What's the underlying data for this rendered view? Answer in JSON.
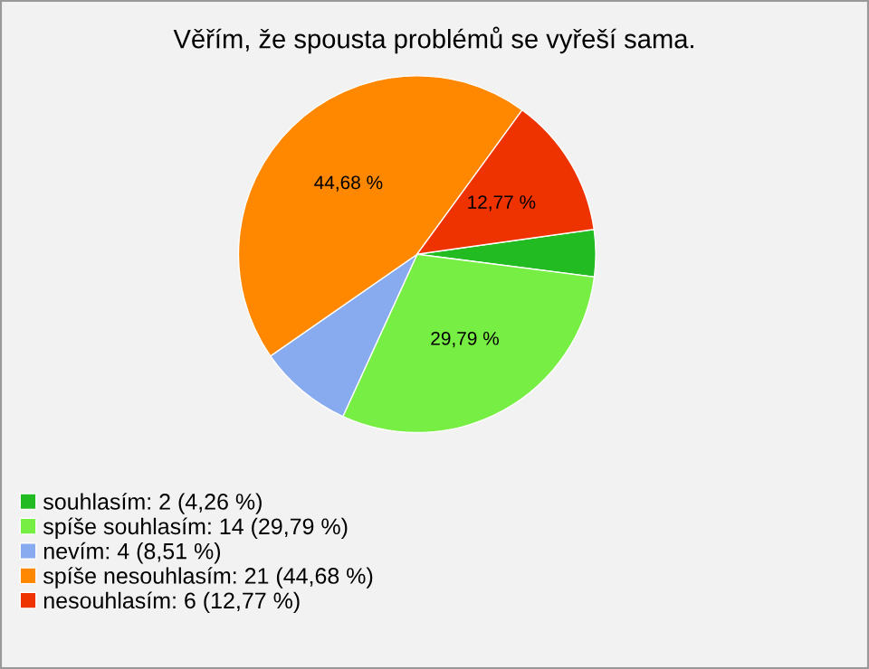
{
  "chart_data": {
    "type": "pie",
    "title": "Věřím, že spousta problémů se vyřeší sama.",
    "categories": [
      "souhlasím: 2 (4,26 %)",
      "spíše souhlasím: 14 (29,79 %)",
      "nevím: 4 (8,51 %)",
      "spíše nesouhlasím: 21 (44,68 %)",
      "nesouhlasím: 6 (12,77 %)"
    ],
    "values": [
      4.26,
      29.79,
      8.51,
      44.68,
      12.77
    ],
    "value_labels": [
      null,
      "29,79 %",
      null,
      "44,68 %",
      "12,77 %"
    ],
    "colors": [
      "#22bb22",
      "#77ee44",
      "#88aaee",
      "#ff8800",
      "#ee3300"
    ],
    "legend": "bottom left"
  }
}
